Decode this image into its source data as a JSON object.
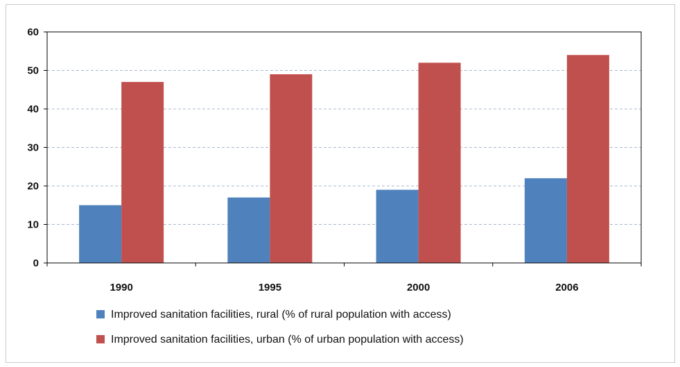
{
  "chart_data": {
    "type": "bar",
    "title": "",
    "xlabel": "",
    "ylabel": "",
    "categories": [
      "1990",
      "1995",
      "2000",
      "2006"
    ],
    "ylim": [
      0,
      60
    ],
    "yticks": [
      0,
      10,
      20,
      30,
      40,
      50,
      60
    ],
    "grid": true,
    "legend_position": "bottom",
    "series": [
      {
        "name": "Improved sanitation facilities, rural (% of rural population with access)",
        "color": "#4f81bd",
        "values": [
          15,
          17,
          19,
          22
        ]
      },
      {
        "name": "Improved sanitation facilities, urban (% of urban population with access)",
        "color": "#c0504d",
        "values": [
          47,
          49,
          52,
          54
        ]
      }
    ]
  }
}
